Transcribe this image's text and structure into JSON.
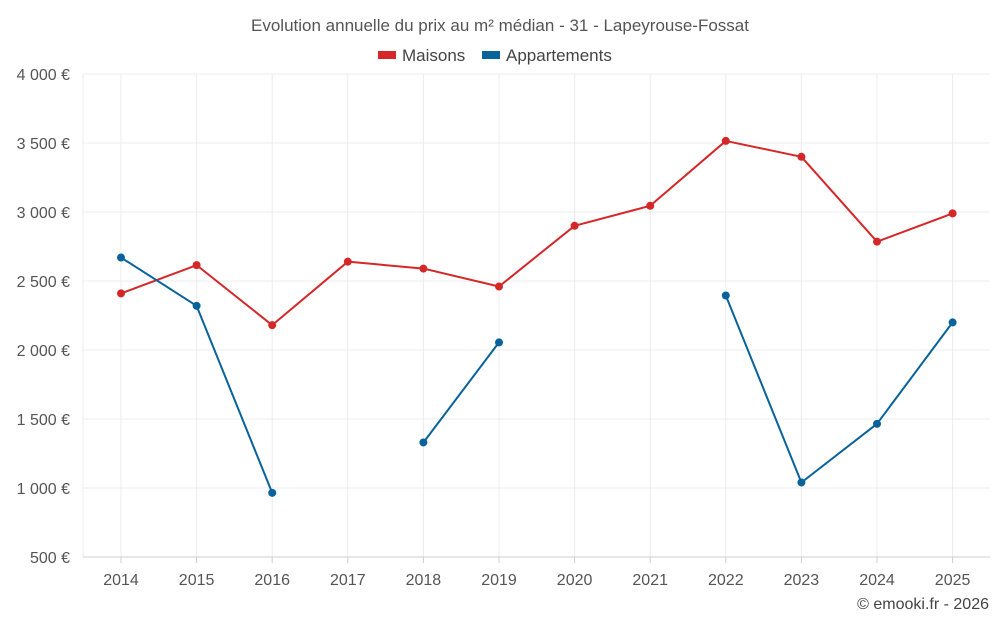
{
  "chart_data": {
    "type": "line",
    "title": "Evolution annuelle du prix au m² médian - 31 - Lapeyrouse-Fossat",
    "categories": [
      "2014",
      "2015",
      "2016",
      "2017",
      "2018",
      "2019",
      "2020",
      "2021",
      "2022",
      "2023",
      "2024",
      "2025"
    ],
    "y_ticks": [
      500,
      1000,
      1500,
      2000,
      2500,
      3000,
      3500,
      4000
    ],
    "y_tick_labels": [
      "500 €",
      "1 000 €",
      "1 500 €",
      "2 000 €",
      "2 500 €",
      "3 000 €",
      "3 500 €",
      "4 000 €"
    ],
    "ylim": [
      500,
      4000
    ],
    "grid": true,
    "legend_position": "top-center",
    "series": [
      {
        "name": "Maisons",
        "color": "#d62728",
        "values": [
          2410,
          2615,
          2180,
          2640,
          2590,
          2460,
          2900,
          3045,
          3515,
          3400,
          2785,
          2990
        ]
      },
      {
        "name": "Appartements",
        "color": "#08639a",
        "values": [
          2670,
          2320,
          965,
          null,
          1330,
          2055,
          null,
          null,
          2395,
          1040,
          1465,
          2200
        ]
      }
    ]
  },
  "credit": "© emooki.fr - 2026"
}
